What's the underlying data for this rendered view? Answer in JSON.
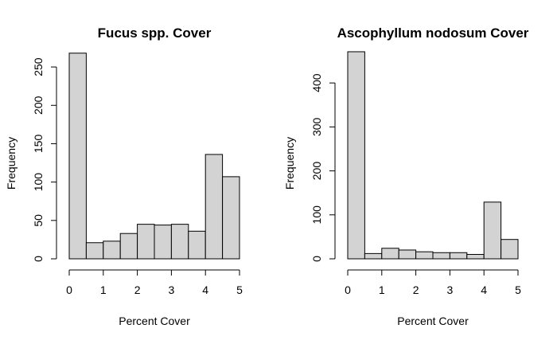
{
  "chart_data": [
    {
      "type": "histogram",
      "title": "Fucus spp. Cover",
      "xlabel": "Percent Cover",
      "ylabel": "Frequency",
      "bin_edges": [
        0,
        0.5,
        1,
        1.5,
        2,
        2.5,
        3,
        3.5,
        4,
        4.5,
        5
      ],
      "values": [
        268,
        21,
        23,
        33,
        45,
        44,
        45,
        36,
        136,
        107
      ],
      "xlim": [
        0,
        5
      ],
      "ylim": [
        0,
        275
      ],
      "xticks": [
        "0",
        "1",
        "2",
        "3",
        "4",
        "5"
      ],
      "yticks": [
        "0",
        "50",
        "100",
        "150",
        "200",
        "250"
      ],
      "bar_color": "#d3d3d3",
      "grid": false
    },
    {
      "type": "histogram",
      "title": "Ascophyllum nodosum Cover",
      "xlabel": "Percent Cover",
      "ylabel": "Frequency",
      "bin_edges": [
        0,
        0.5,
        1,
        1.5,
        2,
        2.5,
        3,
        3.5,
        4,
        4.5,
        5
      ],
      "values": [
        471,
        12,
        24,
        20,
        16,
        14,
        14,
        10,
        129,
        44
      ],
      "xlim": [
        0,
        5
      ],
      "ylim": [
        0,
        480
      ],
      "xticks": [
        "0",
        "1",
        "2",
        "3",
        "4",
        "5"
      ],
      "yticks": [
        "0",
        "100",
        "200",
        "300",
        "400"
      ],
      "bar_color": "#d3d3d3",
      "grid": false
    }
  ]
}
